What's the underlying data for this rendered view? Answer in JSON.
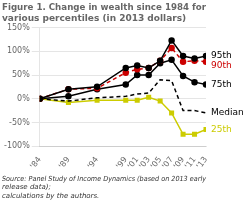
{
  "chart_data": {
    "type": "line",
    "title": "Figure 1. Change in wealth since 1984 for various percentiles (in 2013 dollars)",
    "source": "Source: Panel Study of Income Dynamics (based on 2013 early release data);\ncalculations by the authors.",
    "x": [
      1984,
      1989,
      1994,
      1999,
      2001,
      2003,
      2005,
      2007,
      2009,
      2011,
      2013
    ],
    "xlim": [
      1984,
      2013
    ],
    "xticks": [
      {
        "value": 1984,
        "label": "'84"
      },
      {
        "value": 1989,
        "label": "'89"
      },
      {
        "value": 1994,
        "label": "'94"
      },
      {
        "value": 1999,
        "label": "'99"
      },
      {
        "value": 2001,
        "label": "'01"
      },
      {
        "value": 2003,
        "label": "'03"
      },
      {
        "value": 2005,
        "label": "'05"
      },
      {
        "value": 2007,
        "label": "'07"
      },
      {
        "value": 2009,
        "label": "'09"
      },
      {
        "value": 2011,
        "label": "'11"
      },
      {
        "value": 2013,
        "label": "'13"
      }
    ],
    "ylim": [
      -100,
      150
    ],
    "yticks": [
      {
        "value": -100,
        "label": "-100%"
      },
      {
        "value": -50,
        "label": "-50%"
      },
      {
        "value": 0,
        "label": "0%"
      },
      {
        "value": 50,
        "label": "50%"
      },
      {
        "value": 100,
        "label": "100%"
      },
      {
        "value": 150,
        "label": "150%"
      }
    ],
    "grid": "y",
    "series": [
      {
        "name": "95th",
        "color": "#000000",
        "marker": "circle",
        "line_style": "solid",
        "values": [
          0,
          20,
          25,
          65,
          70,
          65,
          80,
          123,
          90,
          85,
          90
        ]
      },
      {
        "name": "90th",
        "color": "#cc0000",
        "marker": "circle",
        "line_style": "dashed",
        "values": [
          0,
          20,
          22,
          55,
          62,
          65,
          80,
          107,
          78,
          80,
          78
        ]
      },
      {
        "name": "75th",
        "color": "#000000",
        "marker": "circle",
        "line_style": "solid",
        "values": [
          0,
          5,
          20,
          30,
          50,
          50,
          75,
          82,
          48,
          35,
          30
        ]
      },
      {
        "name": "Median",
        "color": "#000000",
        "marker": "none",
        "line_style": "dashed",
        "values": [
          0,
          -5,
          2,
          5,
          10,
          12,
          40,
          38,
          -25,
          -25,
          -30
        ]
      },
      {
        "name": "25th",
        "color": "#cccc00",
        "marker": "square",
        "line_style": "solid",
        "values": [
          0,
          -8,
          -3,
          -3,
          -3,
          3,
          -5,
          -30,
          -75,
          -75,
          -65
        ]
      }
    ]
  }
}
